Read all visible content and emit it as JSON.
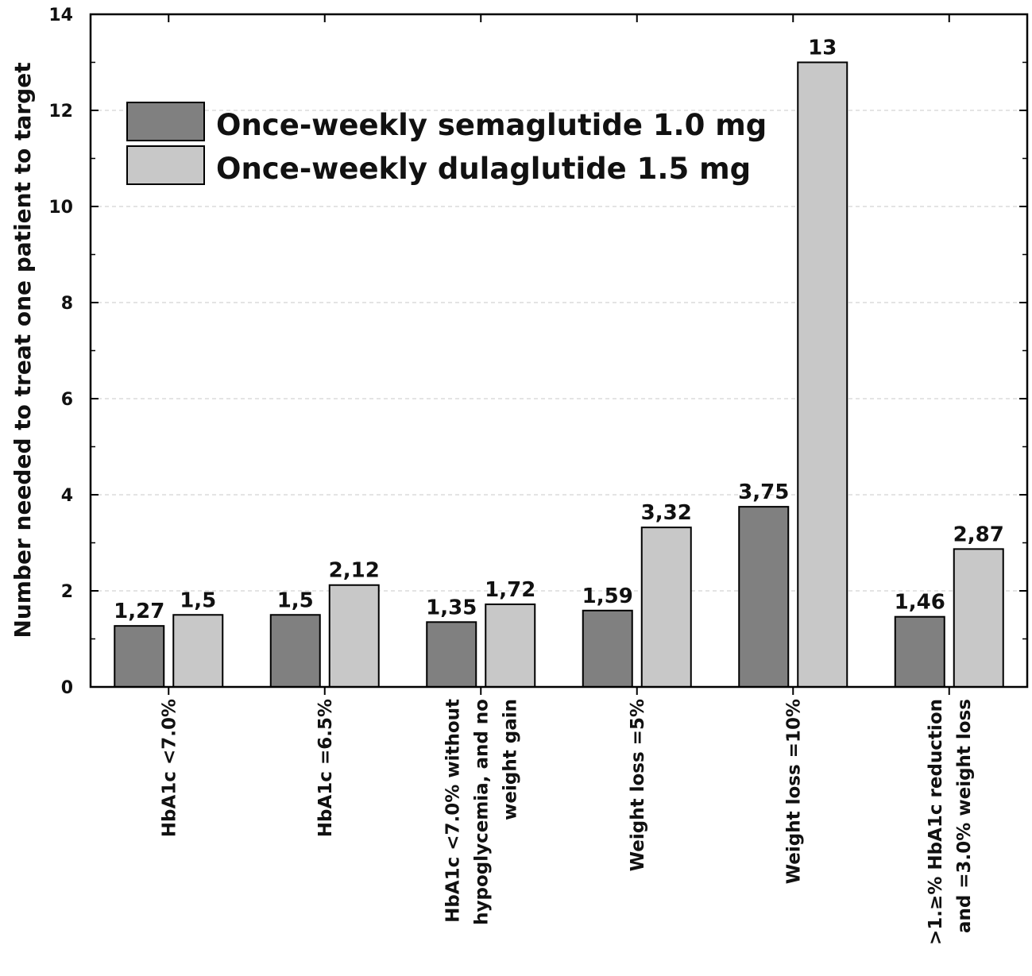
{
  "chart_data": {
    "type": "bar",
    "title": "",
    "xlabel": "",
    "ylabel": "Number needed to treat one patient to target",
    "ylim": [
      0,
      14
    ],
    "yticks": [
      "0",
      "2",
      "4",
      "6",
      "8",
      "10",
      "12",
      "14"
    ],
    "grid": "horizontal dashed",
    "legend_position": "top-left",
    "categories": [
      [
        "HbA1c <7.0%"
      ],
      [
        "HbA1c =6.5%"
      ],
      [
        "HbA1c <7.0% without",
        "hypoglycemia, and no",
        "weight gain"
      ],
      [
        "Weight loss =5%"
      ],
      [
        "Weight loss =10%"
      ],
      [
        ">1.≥% HbA1c reduction",
        "and =3.0% weight loss"
      ]
    ],
    "series": [
      {
        "name": "Once-weekly semaglutide 1.0 mg",
        "color": "#808080",
        "values": [
          1.27,
          1.5,
          1.35,
          1.59,
          3.75,
          1.46
        ],
        "labels": [
          "1,27",
          "1,5",
          "1,35",
          "1,59",
          "3,75",
          "1,46"
        ]
      },
      {
        "name": "Once-weekly dulaglutide 1.5 mg",
        "color": "#c8c8c8",
        "values": [
          1.5,
          2.12,
          1.72,
          3.32,
          13,
          2.87
        ],
        "labels": [
          "1,5",
          "2,12",
          "1,72",
          "3,32",
          "13",
          "2,87"
        ]
      }
    ]
  }
}
